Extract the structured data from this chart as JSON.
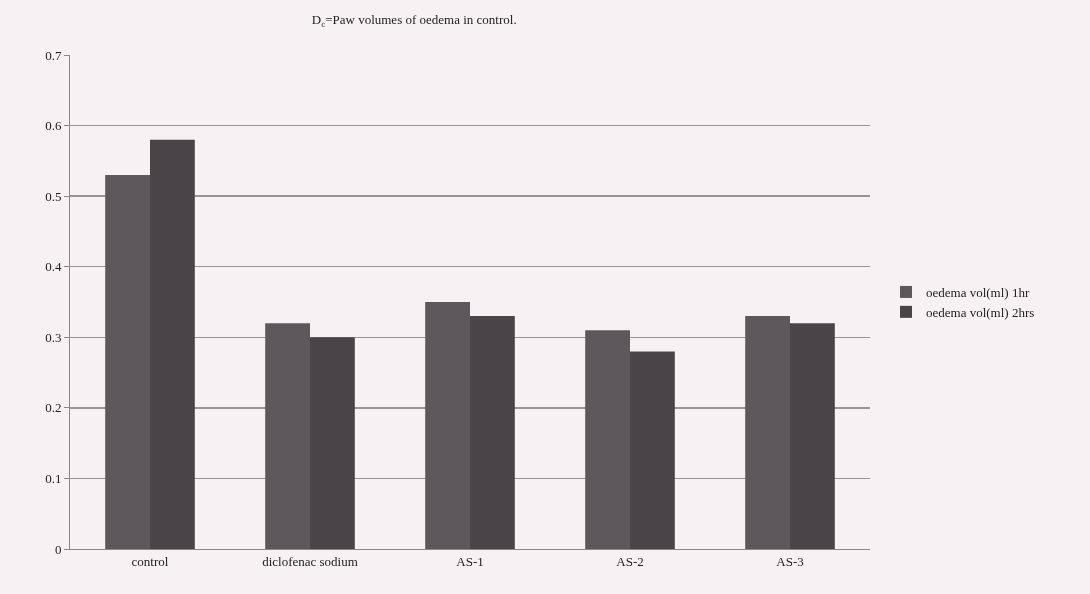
{
  "chart_data": {
    "type": "bar",
    "title": "D$_{c}$=Paw volumes of oedema in control.",
    "categories": [
      "control",
      "diclofenac sodium",
      "AS-1",
      "AS-2",
      "AS-3"
    ],
    "series": [
      {
        "name": "oedema vol(ml) 1hr",
        "color": "#5e585c",
        "values": [
          0.53,
          0.32,
          0.35,
          0.31,
          0.33
        ]
      },
      {
        "name": "oedema vol(ml) 2hrs",
        "color": "#4a4448",
        "values": [
          0.58,
          0.3,
          0.33,
          0.28,
          0.32
        ]
      }
    ],
    "ylim": [
      0,
      0.7
    ],
    "yticks": [
      0,
      0.1,
      0.2,
      0.3,
      0.4,
      0.5,
      0.6,
      0.7
    ],
    "grid": "y",
    "legend": "right"
  }
}
